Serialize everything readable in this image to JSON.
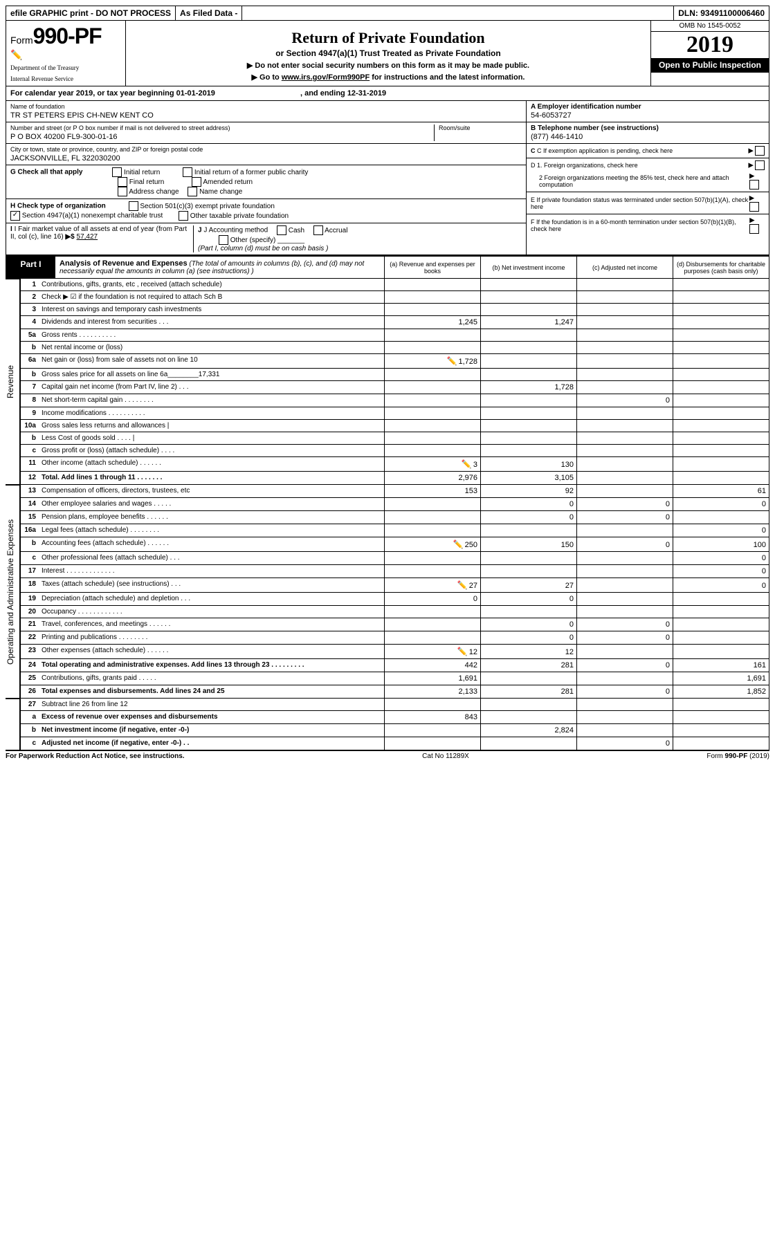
{
  "top_bar": {
    "efile": "efile GRAPHIC print - DO NOT PROCESS",
    "filed": "As Filed Data -",
    "dln": "DLN: 93491100006460"
  },
  "header": {
    "form_prefix": "Form",
    "form_number": "990-PF",
    "dept1": "Department of the Treasury",
    "dept2": "Internal Revenue Service",
    "title": "Return of Private Foundation",
    "subtitle": "or Section 4947(a)(1) Trust Treated as Private Foundation",
    "note1": "▶ Do not enter social security numbers on this form as it may be made public.",
    "note2_prefix": "▶ Go to ",
    "note2_link": "www.irs.gov/Form990PF",
    "note2_suffix": " for instructions and the latest information.",
    "omb": "OMB No 1545-0052",
    "year": "2019",
    "inspection": "Open to Public Inspection"
  },
  "calendar": {
    "text1": "For calendar year 2019, or tax year beginning 01-01-2019",
    "text2": ", and ending 12-31-2019"
  },
  "info": {
    "name_label": "Name of foundation",
    "name": "TR ST PETERS EPIS CH-NEW KENT CO",
    "addr_label": "Number and street (or P O  box number if mail is not delivered to street address)",
    "addr": "P O BOX 40200 FL9-300-01-16",
    "room_label": "Room/suite",
    "city_label": "City or town, state or province, country, and ZIP or foreign postal code",
    "city": "JACKSONVILLE, FL  322030200",
    "a_label": "A Employer identification number",
    "a_value": "54-6053727",
    "b_label": "B Telephone number (see instructions)",
    "b_value": "(877) 446-1410",
    "c_label": "C If exemption application is pending, check here",
    "d1": "D 1. Foreign organizations, check here",
    "d2": "2  Foreign organizations meeting the 85% test, check here and attach computation",
    "e": "E  If private foundation status was terminated under section 507(b)(1)(A), check here",
    "f": "F  If the foundation is in a 60-month termination under section 507(b)(1)(B), check here",
    "g_label": "G Check all that apply",
    "g_opts": [
      "Initial return",
      "Initial return of a former public charity",
      "Final return",
      "Amended return",
      "Address change",
      "Name change"
    ],
    "h_label": "H Check type of organization",
    "h_opt1": "Section 501(c)(3) exempt private foundation",
    "h_opt2": "Section 4947(a)(1) nonexempt charitable trust",
    "h_opt3": "Other taxable private foundation",
    "i_label": "I Fair market value of all assets at end of year (from Part II, col  (c), line 16)",
    "i_value": "57,427",
    "j_label": "J Accounting method",
    "j_opts": [
      "Cash",
      "Accrual"
    ],
    "j_other": "Other (specify)",
    "j_note": "(Part I, column (d) must be on cash basis )"
  },
  "part1": {
    "label": "Part I",
    "desc_bold": "Analysis of Revenue and Expenses",
    "desc": " (The total of amounts in columns (b), (c), and (d) may not necessarily equal the amounts in column (a) (see instructions) )",
    "col_a": "(a) Revenue and expenses per books",
    "col_b": "(b) Net investment income",
    "col_c": "(c) Adjusted net income",
    "col_d": "(d) Disbursements for charitable purposes (cash basis only)"
  },
  "rows": [
    {
      "n": "1",
      "d": "Contributions, gifts, grants, etc , received (attach schedule)",
      "a": "",
      "b": "",
      "c": "",
      "dd": ""
    },
    {
      "n": "2",
      "d": "Check ▶ ☑ if the foundation is not required to attach Sch  B",
      "a": "",
      "b": "",
      "c": "",
      "dd": ""
    },
    {
      "n": "3",
      "d": "Interest on savings and temporary cash investments",
      "a": "",
      "b": "",
      "c": "",
      "dd": ""
    },
    {
      "n": "4",
      "d": "Dividends and interest from securities    .   .   .",
      "a": "1,245",
      "b": "1,247",
      "c": "",
      "dd": ""
    },
    {
      "n": "5a",
      "d": "Gross rents    .   .   .   .   .   .   .   .   .   .",
      "a": "",
      "b": "",
      "c": "",
      "dd": ""
    },
    {
      "n": "b",
      "d": "Net rental income or (loss)  ",
      "a": "",
      "b": "",
      "c": "",
      "dd": ""
    },
    {
      "n": "6a",
      "d": "Net gain or (loss) from sale of assets not on line 10",
      "a": "1,728",
      "b": "",
      "c": "",
      "dd": "",
      "icon": true
    },
    {
      "n": "b",
      "d": "Gross sales price for all assets on line 6a________17,331",
      "a": "",
      "b": "",
      "c": "",
      "dd": ""
    },
    {
      "n": "7",
      "d": "Capital gain net income (from Part IV, line 2)   .   .   .",
      "a": "",
      "b": "1,728",
      "c": "",
      "dd": ""
    },
    {
      "n": "8",
      "d": "Net short-term capital gain  .   .   .   .   .   .   .   .",
      "a": "",
      "b": "",
      "c": "0",
      "dd": ""
    },
    {
      "n": "9",
      "d": "Income modifications .   .   .   .   .   .   .   .   .   .",
      "a": "",
      "b": "",
      "c": "",
      "dd": ""
    },
    {
      "n": "10a",
      "d": "Gross sales less returns and allowances |",
      "a": "",
      "b": "",
      "c": "",
      "dd": ""
    },
    {
      "n": "b",
      "d": "Less  Cost of goods sold    .   .   .   .  |",
      "a": "",
      "b": "",
      "c": "",
      "dd": ""
    },
    {
      "n": "c",
      "d": "Gross profit or (loss) (attach schedule)    .   .   .   .",
      "a": "",
      "b": "",
      "c": "",
      "dd": ""
    },
    {
      "n": "11",
      "d": "Other income (attach schedule)    .   .   .   .   .   .",
      "a": "3",
      "b": "130",
      "c": "",
      "dd": "",
      "icon": true
    },
    {
      "n": "12",
      "d": "Total. Add lines 1 through 11   .   .   .   .   .   .   .",
      "a": "2,976",
      "b": "3,105",
      "c": "",
      "dd": "",
      "bold": true
    }
  ],
  "rows2": [
    {
      "n": "13",
      "d": "Compensation of officers, directors, trustees, etc",
      "a": "153",
      "b": "92",
      "c": "",
      "dd": "61"
    },
    {
      "n": "14",
      "d": "Other employee salaries and wages    .   .   .   .   .",
      "a": "",
      "b": "0",
      "c": "0",
      "dd": "0"
    },
    {
      "n": "15",
      "d": "Pension plans, employee benefits  .   .   .   .   .   .",
      "a": "",
      "b": "0",
      "c": "0",
      "dd": ""
    },
    {
      "n": "16a",
      "d": "Legal fees (attach schedule) .   .   .   .   .   .   .   .",
      "a": "",
      "b": "",
      "c": "",
      "dd": "0"
    },
    {
      "n": "b",
      "d": "Accounting fees (attach schedule) .   .   .   .   .   .",
      "a": "250",
      "b": "150",
      "c": "0",
      "dd": "100",
      "icon": true
    },
    {
      "n": "c",
      "d": "Other professional fees (attach schedule)    .   .   .",
      "a": "",
      "b": "",
      "c": "",
      "dd": "0"
    },
    {
      "n": "17",
      "d": "Interest  .   .   .   .   .   .   .   .   .   .   .   .   .",
      "a": "",
      "b": "",
      "c": "",
      "dd": "0"
    },
    {
      "n": "18",
      "d": "Taxes (attach schedule) (see instructions)     .   .   .",
      "a": "27",
      "b": "27",
      "c": "",
      "dd": "0",
      "icon": true
    },
    {
      "n": "19",
      "d": "Depreciation (attach schedule) and depletion    .   .   .",
      "a": "0",
      "b": "0",
      "c": "",
      "dd": ""
    },
    {
      "n": "20",
      "d": "Occupancy   .   .   .   .   .   .   .   .   .   .   .   .",
      "a": "",
      "b": "",
      "c": "",
      "dd": ""
    },
    {
      "n": "21",
      "d": "Travel, conferences, and meetings .   .   .   .   .   .",
      "a": "",
      "b": "0",
      "c": "0",
      "dd": ""
    },
    {
      "n": "22",
      "d": "Printing and publications .   .   .   .   .   .   .   .",
      "a": "",
      "b": "0",
      "c": "0",
      "dd": ""
    },
    {
      "n": "23",
      "d": "Other expenses (attach schedule) .   .   .   .   .   .",
      "a": "12",
      "b": "12",
      "c": "",
      "dd": "",
      "icon": true
    },
    {
      "n": "24",
      "d": "Total operating and administrative expenses. Add lines 13 through 23   .   .   .   .   .   .   .   .   .",
      "a": "442",
      "b": "281",
      "c": "0",
      "dd": "161",
      "bold": true
    },
    {
      "n": "25",
      "d": "Contributions, gifts, grants paid     .   .   .   .   .",
      "a": "1,691",
      "b": "",
      "c": "",
      "dd": "1,691"
    },
    {
      "n": "26",
      "d": "Total expenses and disbursements. Add lines 24 and 25",
      "a": "2,133",
      "b": "281",
      "c": "0",
      "dd": "1,852",
      "bold": true
    }
  ],
  "rows3": [
    {
      "n": "27",
      "d": "Subtract line 26 from line 12",
      "a": "",
      "b": "",
      "c": "",
      "dd": ""
    },
    {
      "n": "a",
      "d": "Excess of revenue over expenses and disbursements",
      "a": "843",
      "b": "",
      "c": "",
      "dd": "",
      "bold": true
    },
    {
      "n": "b",
      "d": "Net investment income (if negative, enter -0-)",
      "a": "",
      "b": "2,824",
      "c": "",
      "dd": "",
      "bold": true
    },
    {
      "n": "c",
      "d": "Adjusted net income (if negative, enter -0-)   .   .",
      "a": "",
      "b": "",
      "c": "0",
      "dd": "",
      "bold": true
    }
  ],
  "sides": {
    "revenue": "Revenue",
    "expenses": "Operating and Administrative Expenses"
  },
  "footer": {
    "left": "For Paperwork Reduction Act Notice, see instructions.",
    "mid": "Cat  No  11289X",
    "right": "Form 990-PF (2019)"
  }
}
